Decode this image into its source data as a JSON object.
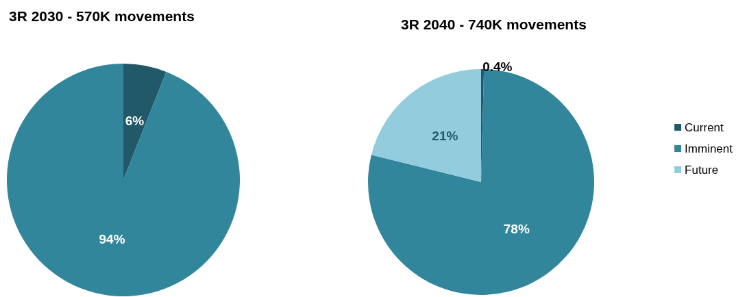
{
  "chart_data": [
    {
      "type": "pie",
      "title": "3R 2030 - 570K movements",
      "categories": [
        null,
        null
      ],
      "values": [
        6,
        94
      ],
      "value_labels": [
        "6%",
        "94%"
      ],
      "colors": [
        "#215968",
        "#31869b"
      ],
      "legend": false
    },
    {
      "type": "pie",
      "title": "3R 2040 - 740K movements",
      "categories": [
        "Current",
        "Imminent",
        "Future"
      ],
      "values": [
        0.4,
        78,
        21
      ],
      "value_labels": [
        "0.4%",
        "78%",
        "21%"
      ],
      "colors": [
        "#215968",
        "#31869b",
        "#93cddd"
      ],
      "legend": "right"
    }
  ]
}
